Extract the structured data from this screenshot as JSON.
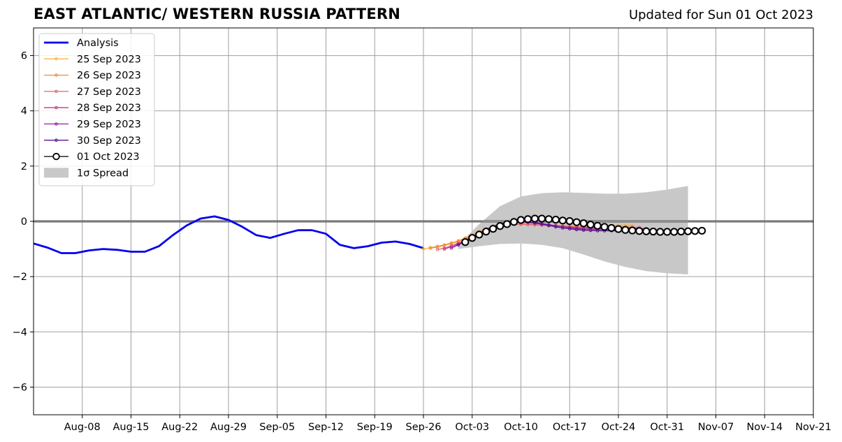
{
  "title": "EAST ATLANTIC/ WESTERN RUSSIA PATTERN",
  "updated": "Updated for Sun 01 Oct 2023",
  "colors": {
    "analysis": "#0000ee",
    "spread": "#c8c8c8",
    "grid": "#a0a0a0",
    "fc_25": "#fbb43c",
    "fc_26": "#f0883c",
    "fc_27": "#e0607a",
    "fc_28": "#c03a8e",
    "fc_29": "#8c1fa0",
    "fc_30": "#5a1090",
    "fc_01": "#000000"
  },
  "chart_data": {
    "type": "line",
    "title": "EAST ATLANTIC/ WESTERN RUSSIA PATTERN",
    "xlabel": "",
    "ylabel": "",
    "x_unit": "date (2023)",
    "xlim": [
      "2023-08-01",
      "2023-11-21"
    ],
    "ylim": [
      -7,
      7
    ],
    "yticks": [
      -6,
      -4,
      -2,
      0,
      2,
      4,
      6
    ],
    "ytick_labels": [
      "−6",
      "−4",
      "−2",
      "0",
      "2",
      "4",
      "6"
    ],
    "xticks": [
      "2023-08-08",
      "2023-08-15",
      "2023-08-22",
      "2023-08-29",
      "2023-09-05",
      "2023-09-12",
      "2023-09-19",
      "2023-09-26",
      "2023-10-03",
      "2023-10-10",
      "2023-10-17",
      "2023-10-24",
      "2023-10-31",
      "2023-11-07",
      "2023-11-14",
      "2023-11-21"
    ],
    "xtick_labels": [
      "Aug-08",
      "Aug-15",
      "Aug-22",
      "Aug-29",
      "Sep-05",
      "Sep-12",
      "Sep-19",
      "Sep-26",
      "Oct-03",
      "Oct-10",
      "Oct-17",
      "Oct-24",
      "Oct-31",
      "Nov-07",
      "Nov-14",
      "Nov-21"
    ],
    "grid": true,
    "legend_position": "top-left",
    "zero_line": 0,
    "analysis": {
      "name": "Analysis",
      "x": [
        "2023-08-01",
        "2023-08-03",
        "2023-08-05",
        "2023-08-07",
        "2023-08-09",
        "2023-08-11",
        "2023-08-13",
        "2023-08-15",
        "2023-08-17",
        "2023-08-19",
        "2023-08-21",
        "2023-08-23",
        "2023-08-25",
        "2023-08-27",
        "2023-08-29",
        "2023-08-31",
        "2023-09-02",
        "2023-09-04",
        "2023-09-06",
        "2023-09-08",
        "2023-09-10",
        "2023-09-12",
        "2023-09-14",
        "2023-09-16",
        "2023-09-18",
        "2023-09-20",
        "2023-09-22",
        "2023-09-24",
        "2023-09-26"
      ],
      "y": [
        -0.8,
        -0.95,
        -1.15,
        -1.15,
        -1.05,
        -1.0,
        -1.03,
        -1.1,
        -1.1,
        -0.9,
        -0.5,
        -0.15,
        0.1,
        0.18,
        0.05,
        -0.2,
        -0.5,
        -0.6,
        -0.45,
        -0.32,
        -0.32,
        -0.45,
        -0.85,
        -0.97,
        -0.9,
        -0.77,
        -0.73,
        -0.82,
        -0.97
      ]
    },
    "spread": {
      "name": "1σ Spread",
      "x": [
        "2023-10-01",
        "2023-10-04",
        "2023-10-07",
        "2023-10-10",
        "2023-10-13",
        "2023-10-16",
        "2023-10-19",
        "2023-10-22",
        "2023-10-25",
        "2023-10-28",
        "2023-10-31",
        "2023-11-03"
      ],
      "upper": [
        -0.85,
        -0.1,
        0.55,
        0.9,
        1.02,
        1.05,
        1.03,
        1.0,
        1.0,
        1.05,
        1.15,
        1.28
      ],
      "lower": [
        -1.0,
        -0.9,
        -0.82,
        -0.8,
        -0.85,
        -0.97,
        -1.2,
        -1.45,
        -1.65,
        -1.8,
        -1.88,
        -1.92
      ]
    },
    "series": [
      {
        "name": "25 Sep 2023",
        "x_start": "2023-09-26",
        "step_days": 1,
        "values": [
          -1.0,
          -0.95,
          -0.9,
          -0.85,
          -0.78,
          -0.7,
          -0.6,
          -0.48,
          -0.37,
          -0.27,
          -0.18,
          -0.12,
          -0.1,
          -0.1,
          -0.1,
          -0.11,
          -0.12,
          -0.13,
          -0.14,
          -0.15,
          -0.15,
          -0.15,
          -0.15,
          -0.15,
          -0.15,
          -0.15,
          -0.15,
          -0.15,
          -0.15,
          -0.15,
          -0.15
        ]
      },
      {
        "name": "26 Sep 2023",
        "x_start": "2023-09-27",
        "step_days": 1,
        "values": [
          -0.97,
          -0.93,
          -0.87,
          -0.8,
          -0.72,
          -0.62,
          -0.5,
          -0.38,
          -0.27,
          -0.18,
          -0.12,
          -0.1,
          -0.1,
          -0.11,
          -0.12,
          -0.13,
          -0.14,
          -0.15,
          -0.16,
          -0.17,
          -0.18,
          -0.19,
          -0.2,
          -0.2,
          -0.2,
          -0.2,
          -0.2,
          -0.2,
          -0.2,
          -0.2
        ]
      },
      {
        "name": "27 Sep 2023",
        "x_start": "2023-09-28",
        "step_days": 1,
        "values": [
          -1.02,
          -0.97,
          -0.88,
          -0.78,
          -0.67,
          -0.55,
          -0.43,
          -0.32,
          -0.22,
          -0.15,
          -0.11,
          -0.1,
          -0.1,
          -0.11,
          -0.12,
          -0.14,
          -0.16,
          -0.18,
          -0.19,
          -0.2,
          -0.21,
          -0.22,
          -0.22,
          -0.22,
          -0.22,
          -0.22,
          -0.22,
          -0.22,
          -0.22,
          -0.22
        ]
      },
      {
        "name": "28 Sep 2023",
        "x_start": "2023-09-29",
        "step_days": 1,
        "values": [
          -1.0,
          -0.92,
          -0.82,
          -0.7,
          -0.57,
          -0.44,
          -0.32,
          -0.22,
          -0.14,
          -0.08,
          -0.05,
          -0.04,
          -0.05,
          -0.07,
          -0.1,
          -0.13,
          -0.16,
          -0.19,
          -0.21,
          -0.23,
          -0.24,
          -0.25,
          -0.26,
          -0.26,
          -0.26,
          -0.26,
          -0.26,
          -0.26,
          -0.26,
          -0.26
        ]
      },
      {
        "name": "29 Sep 2023",
        "x_start": "2023-09-30",
        "step_days": 1,
        "values": [
          -0.97,
          -0.85,
          -0.72,
          -0.58,
          -0.44,
          -0.32,
          -0.2,
          -0.11,
          -0.05,
          -0.01,
          0.0,
          -0.01,
          -0.04,
          -0.08,
          -0.12,
          -0.16,
          -0.2,
          -0.23,
          -0.26,
          -0.28,
          -0.29,
          -0.3,
          -0.3,
          -0.3,
          -0.3,
          -0.3,
          -0.3,
          -0.3,
          -0.3,
          -0.3
        ]
      },
      {
        "name": "30 Sep 2023",
        "x_start": "2023-10-01",
        "step_days": 1,
        "values": [
          -0.85,
          -0.72,
          -0.57,
          -0.43,
          -0.3,
          -0.18,
          -0.09,
          -0.03,
          0.0,
          0.0,
          -0.02,
          -0.06,
          -0.1,
          -0.15,
          -0.2,
          -0.24,
          -0.27,
          -0.3,
          -0.32,
          -0.33,
          -0.34,
          -0.34,
          -0.34,
          -0.34,
          -0.34,
          -0.34,
          -0.34,
          -0.34,
          -0.34,
          -0.34
        ]
      },
      {
        "name": "01 Oct 2023",
        "x_start": "2023-10-02",
        "step_days": 1,
        "values": [
          -0.75,
          -0.6,
          -0.48,
          -0.37,
          -0.27,
          -0.17,
          -0.1,
          -0.02,
          0.05,
          0.08,
          0.1,
          0.1,
          0.08,
          0.06,
          0.03,
          0.01,
          -0.03,
          -0.07,
          -0.12,
          -0.16,
          -0.2,
          -0.24,
          -0.28,
          -0.31,
          -0.33,
          -0.35,
          -0.36,
          -0.37,
          -0.38,
          -0.38,
          -0.38,
          -0.37,
          -0.36,
          -0.35,
          -0.34
        ]
      }
    ]
  }
}
